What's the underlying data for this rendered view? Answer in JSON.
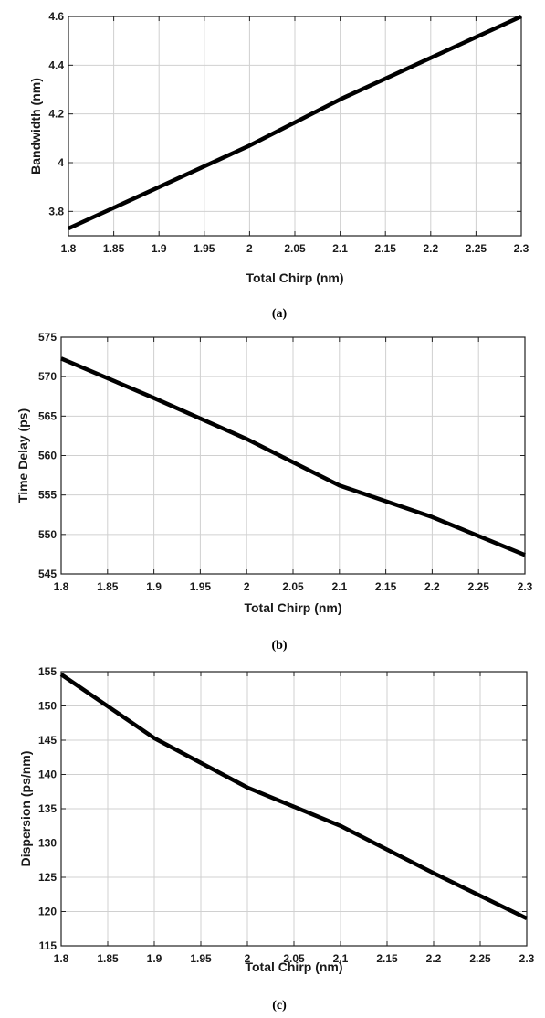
{
  "figure": {
    "colors": {
      "line": "#000000",
      "grid": "#d0d0d0",
      "frame": "#222222",
      "text": "#1a1a1a"
    }
  },
  "chart_data": [
    {
      "type": "line",
      "caption": "(a)",
      "title": "",
      "xlabel": "Total Chirp (nm)",
      "ylabel": "Bandwidth (nm)",
      "xlim": [
        1.8,
        2.3
      ],
      "ylim": [
        3.7,
        4.6
      ],
      "xticks": [
        1.8,
        1.85,
        1.9,
        1.95,
        2.0,
        2.05,
        2.1,
        2.15,
        2.2,
        2.25,
        2.3
      ],
      "xtick_labels": [
        "1.8",
        "1.85",
        "1.9",
        "1.95",
        "2",
        "2.05",
        "2.1",
        "2.15",
        "2.2",
        "2.25",
        "2.3"
      ],
      "yticks": [
        3.8,
        4.0,
        4.2,
        4.4,
        4.6
      ],
      "ytick_labels": [
        "3.8",
        "4",
        "4.2",
        "4.4",
        "4.6"
      ],
      "grid": true,
      "series": [
        {
          "x": [
            1.8,
            1.9,
            2.0,
            2.1,
            2.2,
            2.3
          ],
          "y": [
            3.73,
            3.9,
            4.07,
            4.26,
            4.43,
            4.6
          ]
        }
      ]
    },
    {
      "type": "line",
      "caption": "(b)",
      "title": "",
      "xlabel": "Total Chirp (nm)",
      "ylabel": "Time Delay (ps)",
      "xlim": [
        1.8,
        2.3
      ],
      "ylim": [
        545,
        575
      ],
      "xticks": [
        1.8,
        1.85,
        1.9,
        1.95,
        2.0,
        2.05,
        2.1,
        2.15,
        2.2,
        2.25,
        2.3
      ],
      "xtick_labels": [
        "1.8",
        "1.85",
        "1.9",
        "1.95",
        "2",
        "2.05",
        "2.1",
        "2.15",
        "2.2",
        "2.25",
        "2.3"
      ],
      "yticks": [
        545,
        550,
        555,
        560,
        565,
        570,
        575
      ],
      "ytick_labels": [
        "545",
        "550",
        "555",
        "560",
        "565",
        "570",
        "575"
      ],
      "grid": true,
      "series": [
        {
          "x": [
            1.8,
            1.9,
            2.0,
            2.1,
            2.2,
            2.3
          ],
          "y": [
            572.3,
            567.3,
            562.1,
            556.2,
            552.2,
            547.4
          ]
        }
      ]
    },
    {
      "type": "line",
      "caption": "(c)",
      "title": "",
      "xlabel": "Total Chirp (nm)",
      "ylabel": "Dispersion (ps/nm)",
      "xlim": [
        1.8,
        2.3
      ],
      "ylim": [
        115,
        155
      ],
      "xticks": [
        1.8,
        1.85,
        1.9,
        1.95,
        2.0,
        2.05,
        2.1,
        2.15,
        2.2,
        2.25,
        2.3
      ],
      "xtick_labels": [
        "1.8",
        "1.85",
        "1.9",
        "1.95",
        "2",
        "2.05",
        "2.1",
        "2.15",
        "2.2",
        "2.25",
        "2.3"
      ],
      "yticks": [
        115,
        120,
        125,
        130,
        135,
        140,
        145,
        150,
        155
      ],
      "ytick_labels": [
        "115",
        "120",
        "125",
        "130",
        "135",
        "140",
        "145",
        "150",
        "155"
      ],
      "grid": true,
      "series": [
        {
          "x": [
            1.8,
            1.9,
            2.0,
            2.1,
            2.2,
            2.3
          ],
          "y": [
            154.6,
            145.3,
            138.1,
            132.5,
            125.6,
            119.0
          ]
        }
      ]
    }
  ]
}
